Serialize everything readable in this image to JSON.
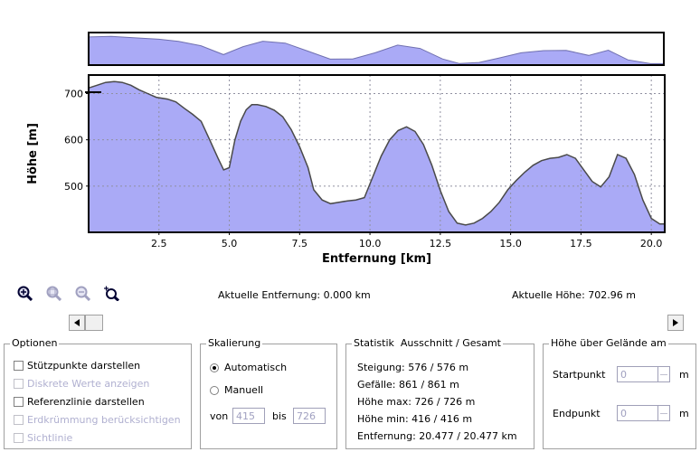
{
  "chart_data": [
    {
      "type": "area",
      "role": "overview",
      "x": [
        0,
        0.8,
        1.6,
        2.5,
        3.2,
        4.0,
        4.8,
        5.5,
        6.2,
        7.0,
        7.8,
        8.6,
        9.4,
        10.2,
        11.0,
        11.8,
        12.6,
        13.2,
        13.9,
        14.6,
        15.4,
        16.2,
        17.0,
        17.8,
        18.5,
        19.2,
        20.0,
        20.477
      ],
      "values": [
        720,
        728,
        712,
        695,
        670,
        620,
        520,
        610,
        672,
        650,
        560,
        468,
        470,
        540,
        628,
        590,
        470,
        418,
        430,
        480,
        540,
        565,
        568,
        510,
        570,
        460,
        416,
        416
      ],
      "ylim": [
        400,
        740
      ],
      "xlim": [
        0,
        20.477
      ]
    },
    {
      "type": "area",
      "role": "detail",
      "x": [
        0,
        0.3,
        0.6,
        0.9,
        1.2,
        1.5,
        1.8,
        2.1,
        2.4,
        2.8,
        3.1,
        3.4,
        3.7,
        4.0,
        4.3,
        4.6,
        4.8,
        5.0,
        5.2,
        5.4,
        5.6,
        5.8,
        6.0,
        6.3,
        6.6,
        6.9,
        7.2,
        7.5,
        7.8,
        8.0,
        8.3,
        8.6,
        8.9,
        9.2,
        9.5,
        9.8,
        10.1,
        10.4,
        10.7,
        11.0,
        11.3,
        11.6,
        11.9,
        12.2,
        12.5,
        12.8,
        13.1,
        13.4,
        13.7,
        14.0,
        14.3,
        14.6,
        14.9,
        15.2,
        15.5,
        15.8,
        16.1,
        16.4,
        16.7,
        17.0,
        17.3,
        17.6,
        17.9,
        18.2,
        18.5,
        18.8,
        19.1,
        19.4,
        19.7,
        20.0,
        20.3,
        20.477
      ],
      "values": [
        712,
        718,
        724,
        726,
        724,
        718,
        708,
        700,
        692,
        688,
        682,
        668,
        655,
        640,
        600,
        560,
        535,
        540,
        600,
        640,
        665,
        676,
        676,
        672,
        664,
        650,
        622,
        585,
        540,
        492,
        470,
        462,
        465,
        468,
        470,
        475,
        520,
        565,
        600,
        620,
        628,
        618,
        590,
        545,
        490,
        445,
        420,
        416,
        420,
        430,
        445,
        465,
        492,
        512,
        530,
        545,
        555,
        560,
        562,
        568,
        560,
        535,
        510,
        498,
        520,
        568,
        560,
        525,
        470,
        430,
        418,
        418
      ],
      "xlabel": "Entfernung [km]",
      "ylabel": "Höhe [m]",
      "xticks": [
        2.5,
        5.0,
        7.5,
        10.0,
        12.5,
        15.0,
        17.5,
        20.0
      ],
      "xtick_labels": [
        "2.5",
        "5.0",
        "7.5",
        "10.0",
        "12.5",
        "15.0",
        "17.5",
        "20.0"
      ],
      "yticks": [
        500,
        600,
        700
      ],
      "ytick_labels": [
        "500",
        "600",
        "700"
      ],
      "xlim": [
        0,
        20.477
      ],
      "ylim": [
        400,
        740
      ],
      "grid": true,
      "fill_color": "#aaaaf6",
      "line_color": "#4a4a4a"
    }
  ],
  "toolbar": {
    "icons": [
      "zoom-in-icon",
      "zoom-region-icon",
      "zoom-out-icon",
      "zoom-reset-icon"
    ]
  },
  "readouts": {
    "distance": "Aktuelle Entfernung: 0.000 km",
    "height": "Aktuelle Höhe: 702.96 m"
  },
  "options": {
    "title": "Optionen",
    "items": [
      {
        "label": "Stützpunkte darstellen",
        "enabled": true
      },
      {
        "label": "Diskrete Werte anzeigen",
        "enabled": false
      },
      {
        "label": "Referenzlinie darstellen",
        "enabled": true
      },
      {
        "label": "Erdkrümmung berücksichtigen",
        "enabled": false
      },
      {
        "label": "Sichtlinie",
        "enabled": false
      }
    ]
  },
  "scaling": {
    "title": "Skalierung",
    "auto_label": "Automatisch",
    "manual_label": "Manuell",
    "from_label": "von",
    "from_value": "415",
    "to_label": "bis",
    "to_value": "726"
  },
  "stats": {
    "title": "Statistik  Ausschnitt / Gesamt",
    "rows": [
      "Steigung: 576 / 576 m",
      "Gefälle: 861 / 861 m",
      "Höhe max: 726 / 726 m",
      "Höhe min: 416 / 416 m",
      "Entfernung: 20.477 / 20.477 km"
    ]
  },
  "ground_height": {
    "title": "Höhe über Gelände am",
    "start_label": "Startpunkt",
    "start_value": "0",
    "end_label": "Endpunkt",
    "end_value": "0",
    "unit": "m"
  }
}
